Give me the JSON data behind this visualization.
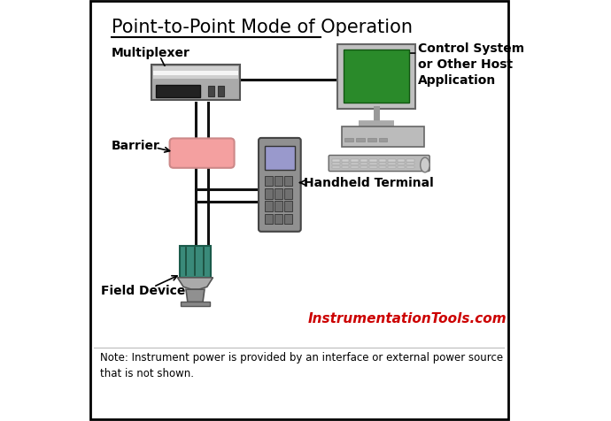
{
  "title": "Point-to-Point Mode of Operation",
  "bg_color": "#ffffff",
  "border_color": "#000000",
  "labels": {
    "multiplexer": "Multiplexer",
    "barrier": "Barrier",
    "field_device": "Field Device",
    "handheld": "Handheld Terminal",
    "control_system": "Control System\nor Other Host\nApplication",
    "website": "InstrumentationTools.com",
    "note": "Note: Instrument power is provided by an interface or external power source\nthat is not shown."
  },
  "colors": {
    "multiplexer_body": "#aaaaaa",
    "barrier_fill": "#f4a0a0",
    "barrier_border": "#cc8888",
    "field_device_teal": "#3a8a7a",
    "wire_color": "#111111",
    "monitor_screen": "#2a8a2a",
    "handheld_screen": "#9999cc",
    "website_color": "#cc0000",
    "note_color": "#000000",
    "title_color": "#000000"
  },
  "layout": {
    "xlim": [
      0,
      10
    ],
    "ylim": [
      0,
      10
    ],
    "figsize": [
      6.9,
      4.77
    ],
    "dpi": 100
  }
}
